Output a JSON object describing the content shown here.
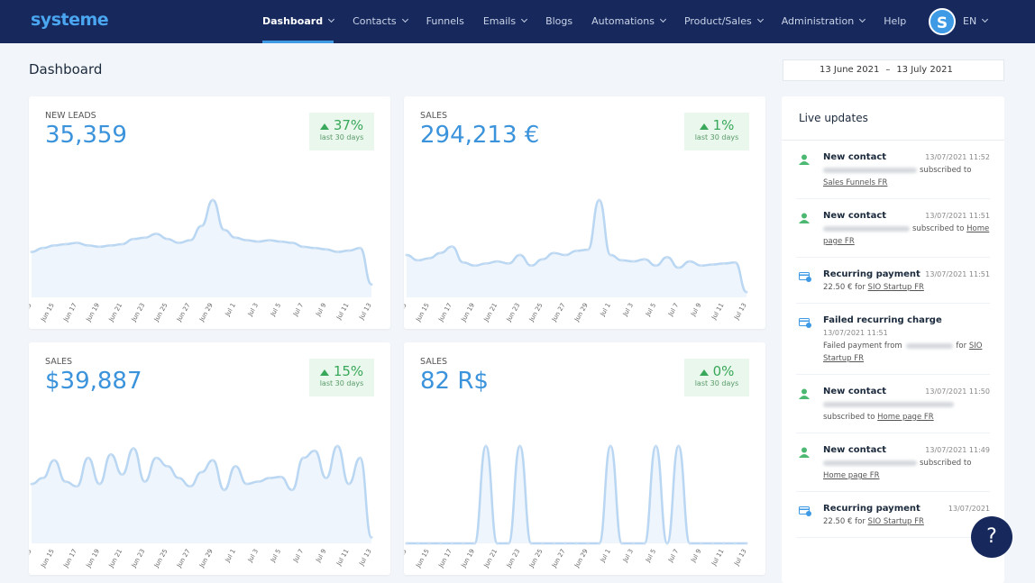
{
  "nav": {
    "logo": "systeme",
    "items": [
      "Dashboard",
      "Contacts",
      "Funnels",
      "Emails",
      "Blogs",
      "Automations",
      "Product/Sales",
      "Administration",
      "Help"
    ],
    "avatar": "S",
    "language": "EN"
  },
  "page_title": "Dashboard",
  "date_range": {
    "start": "13 June 2021",
    "separator": "–",
    "end": "13 July 2021"
  },
  "cards": [
    {
      "label": "NEW LEADS",
      "value": "35,359",
      "change": "37%",
      "period": "last 30 days",
      "chart": {
        "type": "line",
        "categories": [
          "Jun 13",
          null,
          "Jun 15",
          null,
          "Jun 17",
          null,
          "Jun 19",
          null,
          "Jun 21",
          null,
          "Jun 23",
          null,
          "Jun 25",
          null,
          "Jun 27",
          null,
          "Jun 29",
          null,
          "Jul 1",
          null,
          "Jul 3",
          null,
          "Jul 5",
          null,
          "Jul 7",
          null,
          "Jul 9",
          null,
          "Jul 11",
          null,
          "Jul 13"
        ],
        "values": [
          35,
          38,
          40,
          41,
          42,
          40,
          39,
          40,
          41,
          45,
          46,
          49,
          45,
          42,
          44,
          55,
          75,
          52,
          46,
          44,
          43,
          44,
          43,
          42,
          39,
          38,
          37,
          35,
          36,
          38,
          10
        ]
      }
    },
    {
      "label": "SALES",
      "value": "294,213 €",
      "change": "1%",
      "period": "last 30 days",
      "chart": {
        "type": "line",
        "categories": [
          "Jun 13",
          null,
          "Jun 15",
          null,
          "Jun 17",
          null,
          "Jun 19",
          null,
          "Jun 21",
          null,
          "Jun 23",
          null,
          "Jun 25",
          null,
          "Jun 27",
          null,
          "Jun 29",
          null,
          "Jul 1",
          null,
          "Jul 3",
          null,
          "Jul 5",
          null,
          "Jul 7",
          null,
          "Jul 9",
          null,
          "Jul 11",
          null,
          "Jul 13"
        ],
        "values": [
          40,
          35,
          37,
          42,
          48,
          33,
          30,
          32,
          34,
          32,
          40,
          30,
          36,
          42,
          40,
          44,
          45,
          92,
          40,
          35,
          34,
          36,
          30,
          38,
          28,
          34,
          30,
          31,
          32,
          33,
          5
        ]
      }
    },
    {
      "label": "SALES",
      "value": "$39,887",
      "change": "15%",
      "period": "last 30 days",
      "chart": {
        "type": "line",
        "categories": [
          "Jun 13",
          null,
          "Jun 15",
          null,
          "Jun 17",
          null,
          "Jun 19",
          null,
          "Jun 21",
          null,
          "Jun 23",
          null,
          "Jun 25",
          null,
          "Jun 27",
          null,
          "Jun 29",
          null,
          "Jul 1",
          null,
          "Jul 3",
          null,
          "Jul 5",
          null,
          "Jul 7",
          null,
          "Jul 9",
          null,
          "Jul 11",
          null,
          "Jul 13"
        ],
        "values": [
          50,
          55,
          70,
          52,
          48,
          72,
          50,
          75,
          58,
          80,
          52,
          72,
          65,
          55,
          48,
          60,
          70,
          45,
          65,
          50,
          52,
          55,
          56,
          45,
          72,
          78,
          55,
          82,
          50,
          72,
          5
        ]
      }
    },
    {
      "label": "SALES",
      "value": "82 R$",
      "change": "0%",
      "period": "last 30 days",
      "chart": {
        "type": "line",
        "categories": [
          "Jun 13",
          null,
          "Jun 15",
          null,
          "Jun 17",
          null,
          "Jun 19",
          null,
          "Jun 21",
          null,
          "Jun 23",
          null,
          "Jun 25",
          null,
          "Jun 27",
          null,
          "Jun 29",
          null,
          "Jul 1",
          null,
          "Jul 3",
          null,
          "Jul 5",
          null,
          "Jul 7",
          null,
          "Jul 9",
          null,
          "Jul 11",
          null,
          "Jul 13"
        ],
        "values": [
          0,
          0,
          0,
          0,
          0,
          0,
          0,
          100,
          0,
          0,
          100,
          0,
          0,
          0,
          0,
          0,
          0,
          0,
          100,
          0,
          0,
          0,
          100,
          0,
          100,
          0,
          0,
          0,
          0,
          0,
          0
        ]
      }
    }
  ],
  "live_updates": {
    "title": "Live updates",
    "items": [
      {
        "title": "New contact",
        "time": "13/07/2021 11:52",
        "text": "subscribed to",
        "link": "Sales Funnels FR"
      },
      {
        "title": "New contact",
        "time": "13/07/2021 11:51",
        "text": "subscribed to",
        "link": "Home page FR"
      },
      {
        "title": "Recurring payment",
        "time": "13/07/2021 11:51",
        "text": "22.50 € for",
        "link": "SIO Startup FR"
      },
      {
        "title": "Failed recurring charge",
        "time": "13/07/2021 11:51",
        "text": "Failed payment from",
        "text2": "for",
        "link": "SIO Startup FR"
      },
      {
        "title": "New contact",
        "time": "13/07/2021 11:50",
        "text": "subscribed to",
        "link": "Home page FR"
      },
      {
        "title": "New contact",
        "time": "13/07/2021 11:49",
        "text": "subscribed to",
        "link": "Home page FR"
      },
      {
        "title": "Recurring payment",
        "time": "13/07/2021",
        "text": "22.50 € for",
        "link": "SIO Startup FR"
      }
    ]
  },
  "help_button": "?"
}
